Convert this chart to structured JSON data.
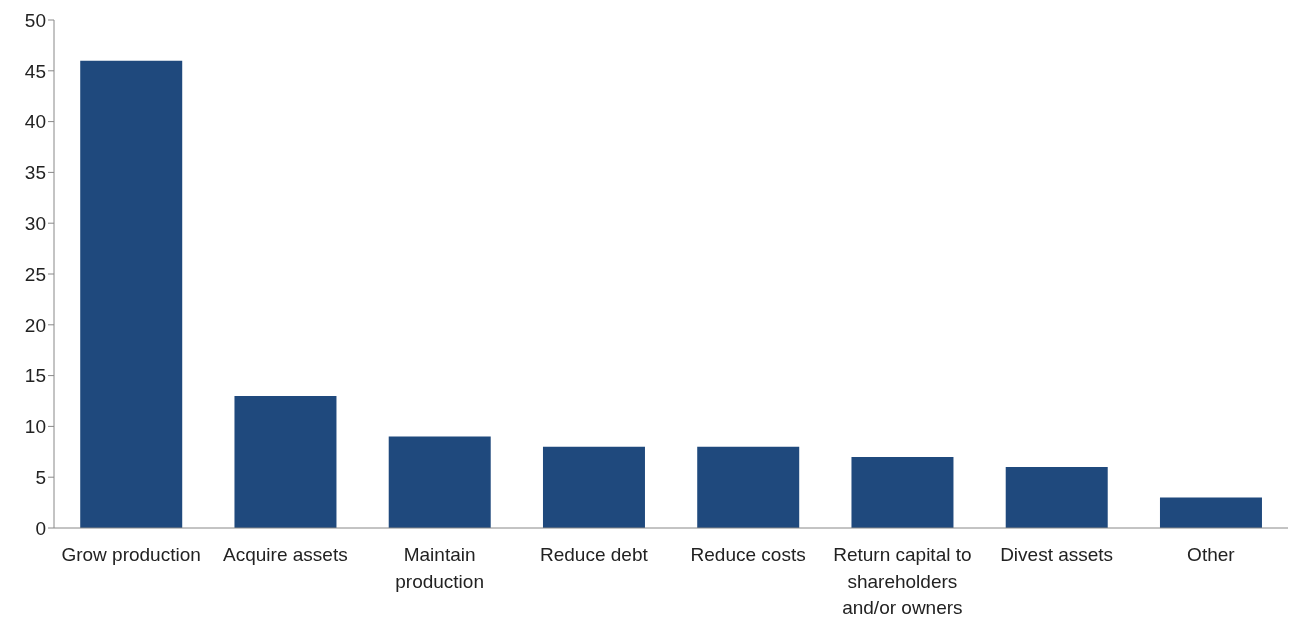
{
  "chart_data": {
    "type": "bar",
    "categories": [
      "Grow production",
      "Acquire assets",
      "Maintain production",
      "Reduce debt",
      "Reduce costs",
      "Return capital to shareholders and/or owners",
      "Divest assets",
      "Other"
    ],
    "values": [
      46,
      13,
      9,
      8,
      8,
      7,
      6,
      3
    ],
    "color": "#1f497d",
    "ylim": [
      0,
      50
    ],
    "yticks": [
      0,
      5,
      10,
      15,
      20,
      25,
      30,
      35,
      40,
      45,
      50
    ],
    "grid": false,
    "legend": false
  }
}
